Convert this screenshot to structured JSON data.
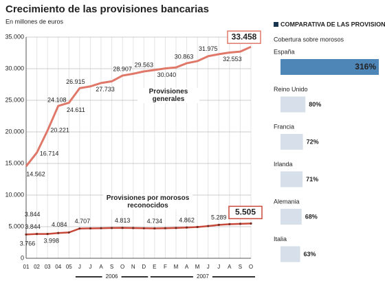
{
  "chart_data": [
    {
      "type": "line",
      "title": "Crecimiento de las provisiones bancarias",
      "subtitle": "En millones de euros",
      "categories": [
        "01",
        "02",
        "03",
        "04",
        "05",
        "J",
        "J",
        "A",
        "S",
        "O",
        "N",
        "D",
        "E",
        "F",
        "M",
        "A",
        "M",
        "J",
        "J",
        "A",
        "S",
        "O"
      ],
      "year_groups": [
        {
          "label": "2006",
          "start": 5,
          "end": 11
        },
        {
          "label": "2007",
          "start": 12,
          "end": 21
        }
      ],
      "ylim": [
        0,
        35000
      ],
      "yticks": [
        0,
        {
          "value": 5000,
          "label": "5.000"
        },
        {
          "value": 10000,
          "label": "10.000"
        },
        {
          "value": 15000,
          "label": "15.000"
        },
        {
          "value": 20000,
          "label": "20.000"
        },
        {
          "value": 25000,
          "label": "25.000"
        },
        {
          "value": 30000,
          "label": "30.000"
        },
        {
          "value": 35000,
          "label": "35.000"
        }
      ],
      "grid": true,
      "series": [
        {
          "name": "Provisiones generales",
          "color": "#e0786a",
          "values": [
            14562,
            16714,
            20221,
            24108,
            24611,
            26915,
            27200,
            27733,
            28000,
            28907,
            29200,
            29563,
            29800,
            30040,
            30200,
            30863,
            31200,
            31975,
            32300,
            32553,
            32700,
            33458
          ],
          "value_labels": [
            "14.562",
            "16.714",
            "20.221",
            "24.108",
            "24.611",
            "26.915",
            null,
            "27.733",
            null,
            "28.907",
            null,
            "29.563",
            null,
            "30.040",
            null,
            "30.863",
            null,
            "31.975",
            null,
            "32.553",
            null,
            "33.458"
          ]
        },
        {
          "name": "Provisiones por morosos reconocidos",
          "color": "#c8483a",
          "values": [
            3766,
            3844,
            3844,
            3998,
            4084,
            4707,
            4730,
            4760,
            4790,
            4813,
            4780,
            4750,
            4734,
            4760,
            4800,
            4862,
            4950,
            5100,
            5289,
            5400,
            5450,
            5505
          ],
          "value_labels": [
            "3.766",
            "3.844",
            "3.844",
            "3.998",
            "4.084",
            "4.707",
            null,
            null,
            null,
            "4.813",
            null,
            null,
            "4.734",
            null,
            null,
            "4.862",
            null,
            null,
            "5.289",
            null,
            null,
            "5.505"
          ]
        }
      ]
    },
    {
      "type": "hbar",
      "title": "COMPARATIVA DE LAS PROVISIONES EN EUROPA",
      "subtitle": "Cobertura sobre morosos",
      "categories": [
        "España",
        "Reino Unido",
        "Francia",
        "Irlanda",
        "Alemania",
        "Italia"
      ],
      "values": [
        316,
        80,
        72,
        71,
        68,
        63
      ],
      "value_labels": [
        "316%",
        "80%",
        "72%",
        "71%",
        "68%",
        "63%"
      ],
      "colors": [
        "#4f86b8",
        "#d6dfea",
        "#d6dfea",
        "#d6dfea",
        "#d6dfea",
        "#d6dfea"
      ]
    }
  ]
}
